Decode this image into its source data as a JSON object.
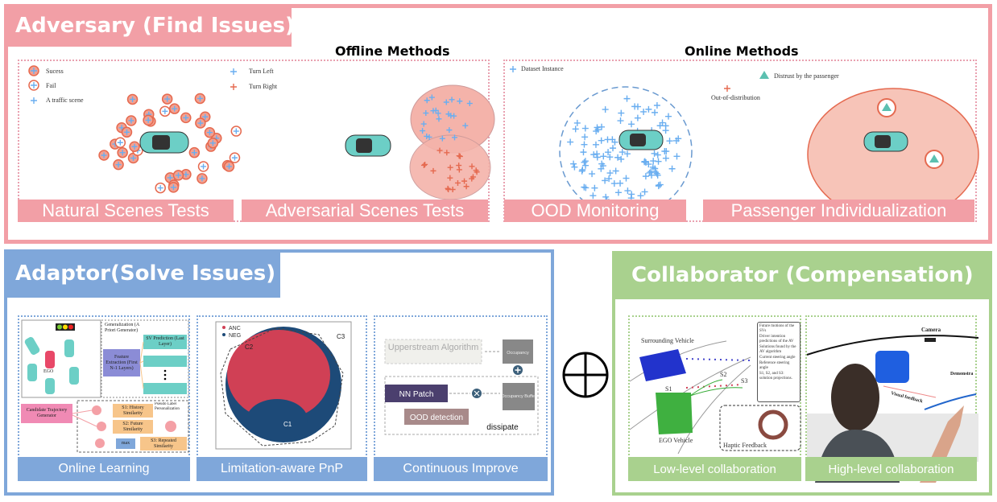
{
  "colors": {
    "adversary": "#f29fa6",
    "adaptor": "#7fa7da",
    "collaborator": "#a9d18e"
  },
  "adversary": {
    "title": "Adversary (Find Issues)",
    "offline_header": "Offline Methods",
    "online_header": "Online Methods",
    "offline_legend": [
      "Sucess",
      "Fail",
      "A traffic scene",
      "Turn Left",
      "Turn Right"
    ],
    "online_legend": [
      "Dataset Instance",
      "Out-of-distribution",
      "Distrust by the passenger"
    ],
    "labels": [
      "Natural Scenes Tests",
      "Adversarial Scenes Tests",
      "OOD Monitoring",
      "Passenger Individualization"
    ]
  },
  "adaptor": {
    "title": "Adaptor(Solve Issues)",
    "labels": [
      "Online Learning",
      "Limitation-aware PnP",
      "Continuous Improve"
    ],
    "online_learning": {
      "ego": "EGO",
      "gen": "Generalization (A Priori Generator)",
      "feat": "Feature Extraction (First N-1 Layers)",
      "pred": "SV Prediction (Last Layer)",
      "cand": "Candidate Trajectory Generator",
      "s1": "S1: History Similarity",
      "s2": "S2: Future Similarity",
      "s3": "S3: Repeated Similarity",
      "max": "max",
      "pseudo": "Pseudo Label Personalization"
    },
    "pnp": {
      "anc": "ANC",
      "neg": "NEG",
      "c1": "C1",
      "c2": "C2",
      "c3": "C3"
    },
    "improve": {
      "up": "Upperstream Algorithm",
      "occ": "Occupancy",
      "nn": "NN Patch",
      "ood": "OOD detection",
      "buf": "Occupancy Buffer",
      "dis": "dissipate"
    }
  },
  "collaborator": {
    "title": "Collaborator (Compensation)",
    "labels": [
      "Low-level collaboration",
      "High-level collaboration"
    ],
    "low": {
      "sv": "Surrounding Vehicle",
      "ego": "EGO Vehicle",
      "haptic": "Haptic Feedback",
      "s1": "S1",
      "s2": "S2",
      "s3": "S3",
      "legend": [
        "Future motions of the SVs",
        "Driver intention predictions of the AV",
        "Solutions found by the AV algorithm",
        "Current steering angle",
        "Reference steering angle",
        "S1, S2, and S3: solution projections."
      ]
    },
    "high": {
      "camera": "Camera",
      "demo": "Demonstra",
      "visual": "Visual feedback"
    }
  },
  "operator": "⊕"
}
